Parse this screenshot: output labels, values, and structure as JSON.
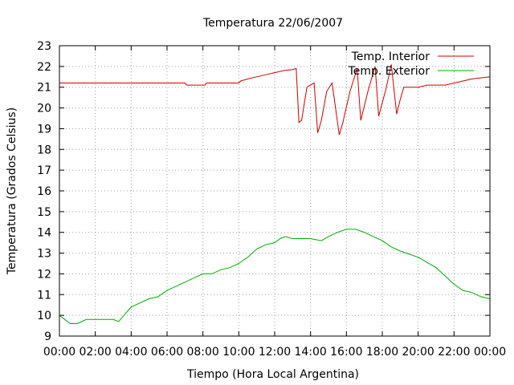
{
  "chart_data": {
    "type": "line",
    "title": "Temperatura 22/06/2007",
    "xlabel": "Tiempo (Hora Local Argentina)",
    "ylabel": "Temperatura (Grados Celsius)",
    "xlim": [
      0,
      24
    ],
    "ylim": [
      9,
      23
    ],
    "x_tick_labels": [
      "00:00",
      "02:00",
      "04:00",
      "06:00",
      "08:00",
      "10:00",
      "12:00",
      "14:00",
      "16:00",
      "18:00",
      "20:00",
      "22:00",
      "00:00"
    ],
    "y_ticks": [
      9,
      10,
      11,
      12,
      13,
      14,
      15,
      16,
      17,
      18,
      19,
      20,
      21,
      22,
      23
    ],
    "grid": true,
    "legend_position": "top-right",
    "series": [
      {
        "name": "Temp. Interior",
        "color": "#cc0000",
        "x": [
          0,
          7,
          7.1,
          8.1,
          8.2,
          10,
          10.1,
          10.5,
          11,
          11.5,
          12,
          12.5,
          13,
          13.2,
          13.35,
          13.5,
          13.8,
          14.2,
          14.4,
          14.6,
          14.9,
          15.2,
          15.6,
          15.8,
          16.2,
          16.6,
          16.8,
          17.2,
          17.6,
          17.8,
          18.2,
          18.5,
          18.8,
          19,
          19.2,
          20,
          20.5,
          21.5,
          22.5,
          23,
          24
        ],
        "y": [
          21.2,
          21.2,
          21.1,
          21.1,
          21.2,
          21.2,
          21.3,
          21.4,
          21.5,
          21.6,
          21.7,
          21.8,
          21.85,
          21.9,
          19.3,
          19.4,
          21.0,
          21.2,
          18.8,
          19.4,
          20.8,
          21.2,
          18.7,
          19.3,
          20.8,
          21.9,
          19.4,
          20.8,
          22.0,
          19.6,
          20.9,
          22.1,
          19.7,
          20.4,
          21.0,
          21.0,
          21.1,
          21.1,
          21.3,
          21.4,
          21.5
        ]
      },
      {
        "name": "Temp. Exterior",
        "color": "#00aa00",
        "x": [
          0,
          0.3,
          0.6,
          1.0,
          1.5,
          2.0,
          2.5,
          3.0,
          3.3,
          3.6,
          4.0,
          4.5,
          5.0,
          5.5,
          6.0,
          7.0,
          7.5,
          8.0,
          8.5,
          9.0,
          9.5,
          10.0,
          10.5,
          11.0,
          11.5,
          12.0,
          12.3,
          12.6,
          13.0,
          14.0,
          14.6,
          15.0,
          15.5,
          16.0,
          16.5,
          17.0,
          17.5,
          18.0,
          18.5,
          19.0,
          20.0,
          21.0,
          21.5,
          22.0,
          22.5,
          23.0,
          23.5,
          24.0
        ],
        "y": [
          10.0,
          9.8,
          9.6,
          9.6,
          9.8,
          9.8,
          9.8,
          9.8,
          9.7,
          10.0,
          10.4,
          10.6,
          10.8,
          10.9,
          11.2,
          11.6,
          11.8,
          12.0,
          12.0,
          12.2,
          12.3,
          12.5,
          12.8,
          13.2,
          13.4,
          13.5,
          13.7,
          13.8,
          13.7,
          13.7,
          13.6,
          13.8,
          14.0,
          14.15,
          14.15,
          14.0,
          13.8,
          13.6,
          13.3,
          13.1,
          12.8,
          12.3,
          11.9,
          11.5,
          11.2,
          11.1,
          10.9,
          10.8
        ]
      }
    ]
  }
}
